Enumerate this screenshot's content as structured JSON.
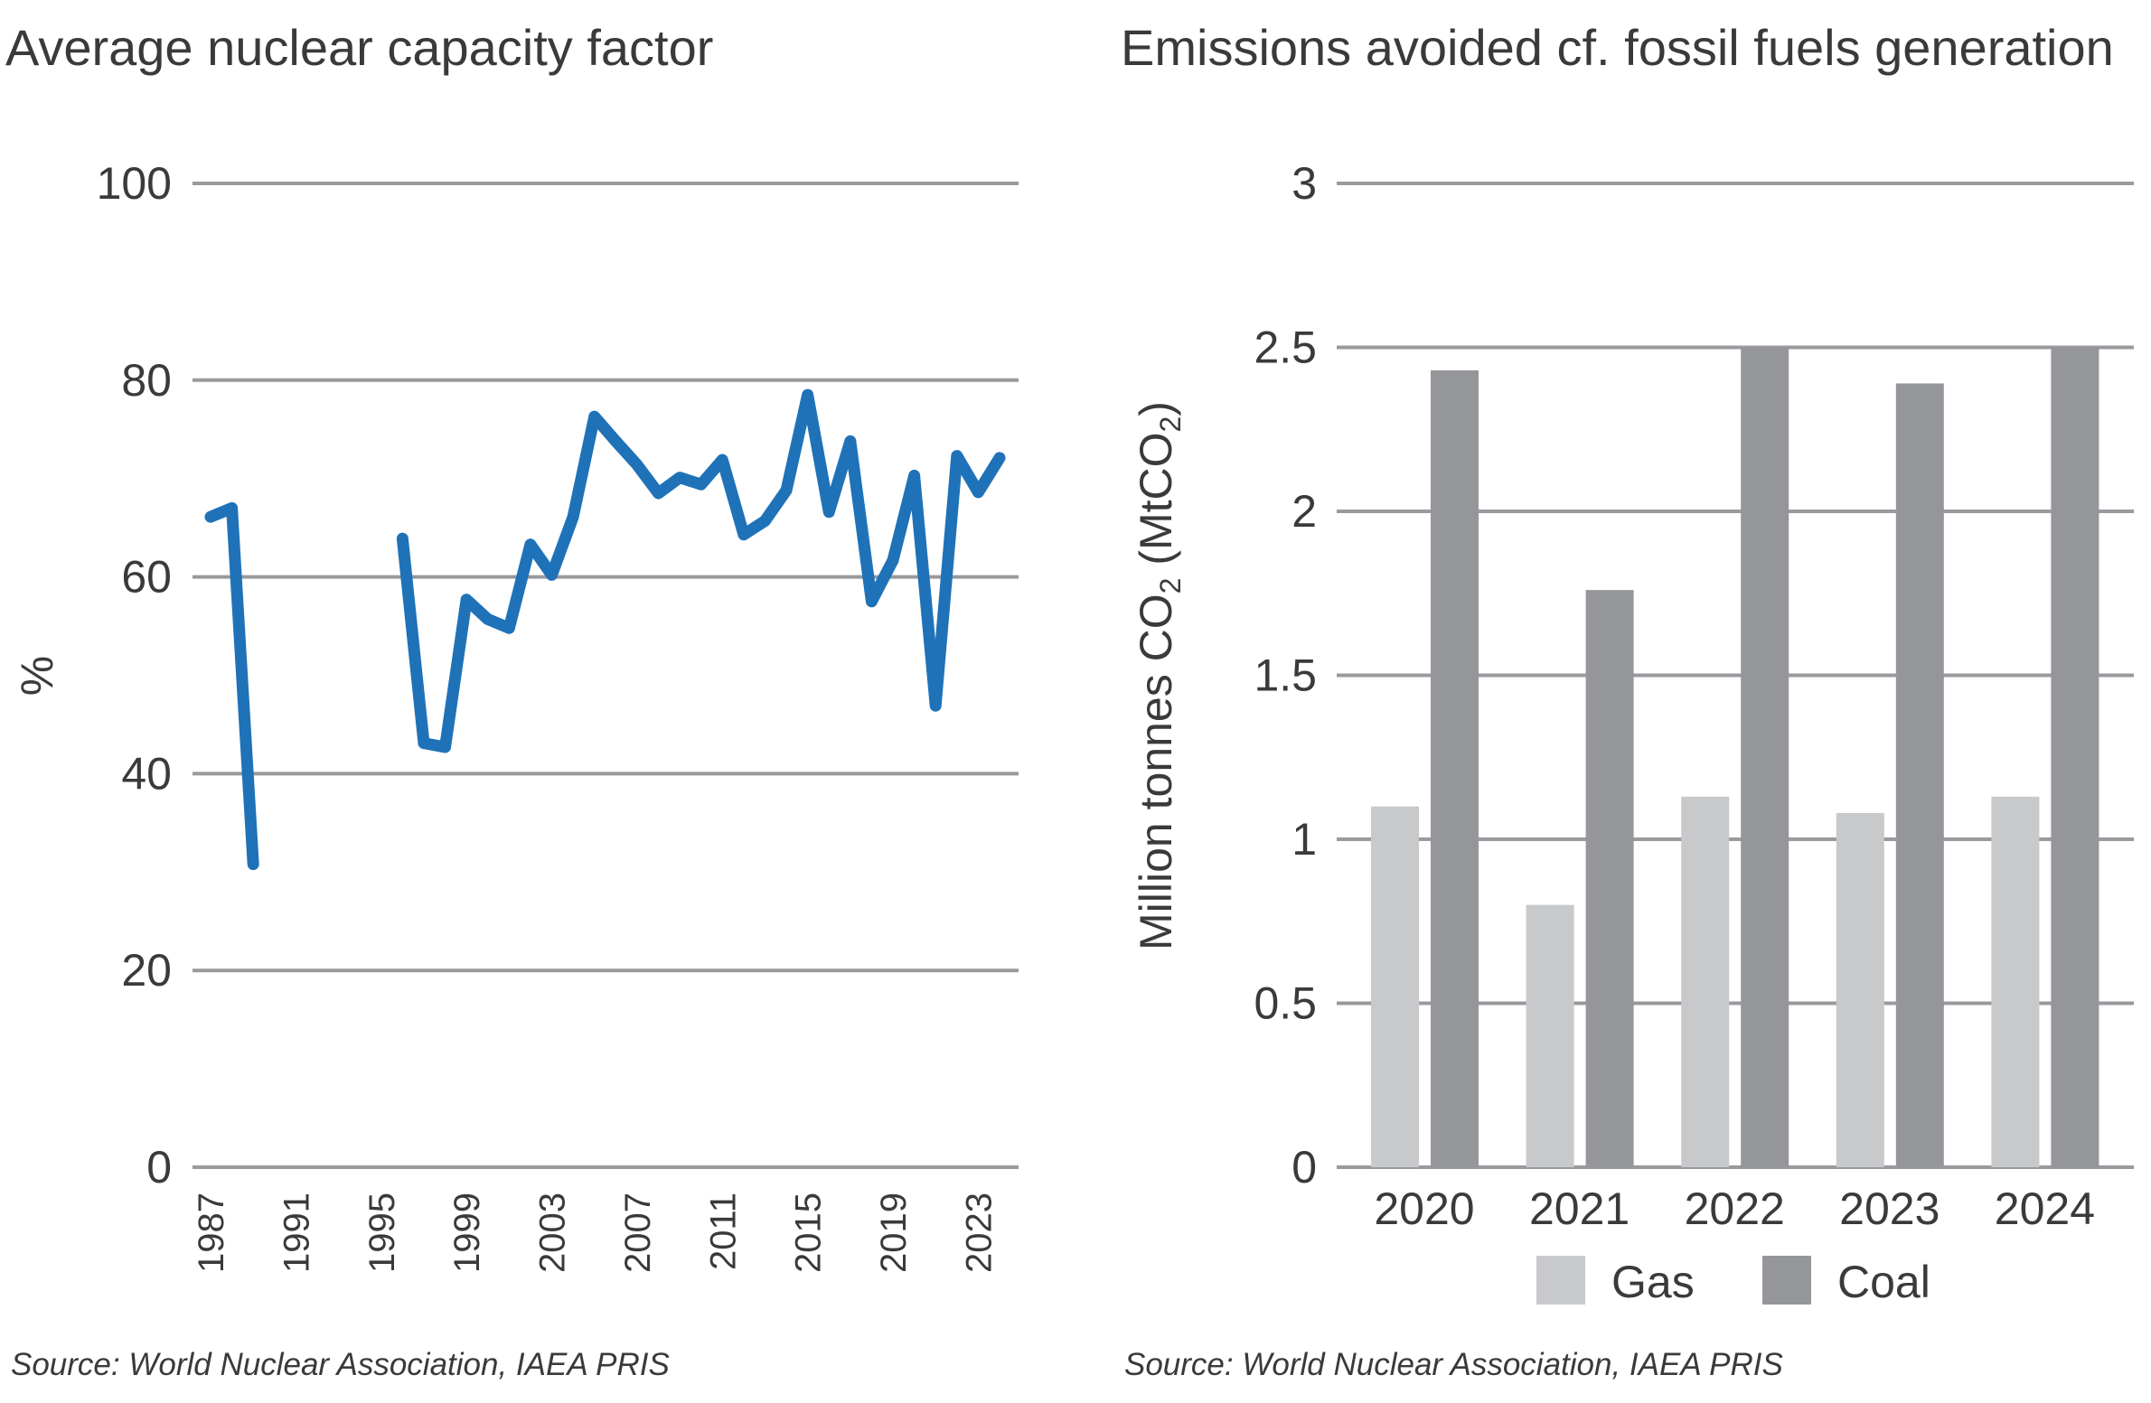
{
  "colors": {
    "line": "#1f72b8",
    "grid": "#999a9d",
    "gas": "#c8c9cb",
    "coal": "#95969a",
    "text": "#3a3a3c"
  },
  "chart_data": [
    {
      "type": "line",
      "title": "Average nuclear capacity factor",
      "xlabel": "",
      "ylabel": "%",
      "ylim": [
        0,
        100
      ],
      "xlim": [
        1987,
        2024
      ],
      "yticks": [
        "0",
        "20",
        "40",
        "60",
        "80",
        "100"
      ],
      "xticks": [
        "1987",
        "1991",
        "1995",
        "1999",
        "2003",
        "2007",
        "2011",
        "2015",
        "2019",
        "2023"
      ],
      "grid": true,
      "source": "Source: World Nuclear Association, IAEA PRIS",
      "series": [
        {
          "x": [
            1987,
            1988,
            1989,
            1990,
            1991,
            1992,
            1993,
            1994,
            1995,
            1996,
            1997,
            1998,
            1999,
            2000,
            2001,
            2002,
            2003,
            2004,
            2005,
            2006,
            2007,
            2008,
            2009,
            2010,
            2011,
            2012,
            2013,
            2014,
            2015,
            2016,
            2017,
            2018,
            2019,
            2020,
            2021,
            2022,
            2023,
            2024
          ],
          "y": [
            66.1,
            67.0,
            30.8,
            null,
            null,
            null,
            null,
            null,
            null,
            63.9,
            43.1,
            42.7,
            57.7,
            55.7,
            54.8,
            63.3,
            60.2,
            66.1,
            76.3,
            73.8,
            71.4,
            68.5,
            70.1,
            69.4,
            71.9,
            64.3,
            65.7,
            68.8,
            78.5,
            66.6,
            73.8,
            57.5,
            61.7,
            70.3,
            46.9,
            72.3,
            68.6,
            72.1
          ]
        }
      ]
    },
    {
      "type": "bar",
      "title": "Emissions avoided cf. fossil fuels generation",
      "xlabel": "",
      "ylabel_main": "Million tonnes CO",
      "ylabel_sub": "2",
      "ylabel_paren": " (MtCO",
      "ylabel_sub2": "2",
      "ylabel_close": ")",
      "ylim": [
        0,
        3
      ],
      "yticks": [
        "0",
        "0.5",
        "1",
        "1.5",
        "2",
        "2.5",
        "3"
      ],
      "categories": [
        "2020",
        "2021",
        "2022",
        "2023",
        "2024"
      ],
      "grid": true,
      "legend": "bottom",
      "source": "Source: World Nuclear Association, IAEA PRIS",
      "series": [
        {
          "name": "Gas",
          "values": [
            1.1,
            0.8,
            1.13,
            1.08,
            1.13
          ]
        },
        {
          "name": "Coal",
          "values": [
            2.43,
            1.76,
            2.5,
            2.39,
            2.5
          ]
        }
      ]
    }
  ]
}
